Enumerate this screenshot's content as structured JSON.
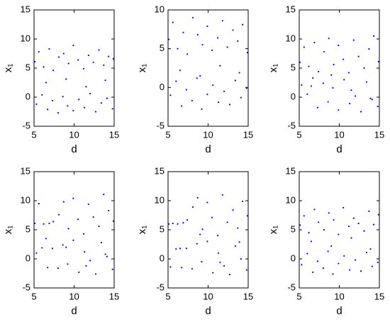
{
  "chart_data": [
    {
      "type": "scatter",
      "xlabel": "d",
      "ylabel": "x₁",
      "color": "#0000ff",
      "xlim": [
        5,
        15
      ],
      "ylim": [
        -5,
        15
      ],
      "xticks": [
        5,
        10,
        15
      ],
      "yticks": [
        -5,
        0,
        5,
        10,
        15
      ],
      "x": [
        5.1,
        5.6,
        6.2,
        6.9,
        7.4,
        8.1,
        8.7,
        9.3,
        9.9,
        10.5,
        11.2,
        11.8,
        12.4,
        13.1,
        13.7,
        14.3,
        14.9,
        5.3,
        6.0,
        6.7,
        7.3,
        8.0,
        8.6,
        9.2,
        9.9,
        10.6,
        11.3,
        12.0,
        12.7,
        13.4,
        14.1,
        14.8,
        6.5,
        9.0,
        11.5,
        13.9
      ],
      "values": [
        6.1,
        7.8,
        5.2,
        8.3,
        4.6,
        6.9,
        7.5,
        5.8,
        8.9,
        6.4,
        4.9,
        7.2,
        6.0,
        8.1,
        5.5,
        7.0,
        6.6,
        -1.2,
        0.4,
        -2.1,
        -0.6,
        -2.7,
        0.1,
        -1.5,
        -2.3,
        -0.4,
        -1.8,
        0.6,
        -2.5,
        -1.0,
        -0.2,
        -2.0,
        2.5,
        3.1,
        1.8,
        2.9
      ]
    },
    {
      "type": "scatter",
      "xlabel": "d",
      "ylabel": "x₁",
      "color": "#0000ff",
      "xlim": [
        5,
        15
      ],
      "ylim": [
        -5,
        10
      ],
      "xticks": [
        5,
        10,
        15
      ],
      "yticks": [
        -5,
        0,
        5,
        10
      ],
      "x": [
        5.1,
        5.6,
        6.2,
        6.9,
        7.4,
        8.1,
        8.7,
        9.3,
        9.9,
        10.5,
        11.2,
        11.8,
        12.4,
        13.1,
        13.7,
        14.3,
        14.9,
        5.3,
        6.0,
        6.7,
        7.3,
        8.0,
        8.6,
        9.2,
        9.9,
        10.6,
        11.3,
        12.0,
        12.7,
        13.4,
        14.1,
        14.8,
        6.5,
        9.0,
        11.5,
        13.9
      ],
      "values": [
        6.2,
        8.4,
        5.0,
        7.1,
        4.3,
        9.0,
        6.8,
        5.5,
        7.9,
        4.8,
        6.4,
        8.6,
        5.2,
        7.4,
        6.0,
        8.1,
        4.5,
        -1.0,
        0.8,
        -2.4,
        -0.3,
        -1.7,
        1.2,
        -2.8,
        -0.9,
        0.3,
        -1.9,
        -0.5,
        -2.2,
        0.9,
        -1.3,
        -0.1,
        2.2,
        1.5,
        2.8,
        1.9
      ]
    },
    {
      "type": "scatter",
      "xlabel": "d",
      "ylabel": "x₁",
      "color": "#0000ff",
      "xlim": [
        5,
        15
      ],
      "ylim": [
        -5,
        15
      ],
      "xticks": [
        5,
        10,
        15
      ],
      "yticks": [
        -5,
        0,
        5,
        10,
        15
      ],
      "x": [
        5.1,
        5.6,
        6.2,
        6.9,
        7.4,
        8.1,
        8.7,
        9.3,
        9.9,
        10.5,
        11.2,
        11.8,
        12.4,
        13.1,
        13.7,
        14.3,
        14.9,
        5.3,
        6.0,
        6.7,
        7.3,
        8.0,
        8.6,
        9.2,
        9.9,
        10.6,
        11.3,
        12.0,
        12.7,
        13.4,
        14.1,
        14.8,
        6.5,
        9.0,
        11.5,
        13.9
      ],
      "values": [
        6.0,
        8.6,
        5.3,
        9.4,
        4.4,
        7.8,
        10.1,
        5.6,
        8.9,
        6.5,
        4.2,
        9.8,
        7.0,
        5.0,
        8.3,
        10.5,
        6.1,
        2.1,
        0.5,
        3.3,
        -1.8,
        2.4,
        -0.8,
        1.6,
        -2.2,
        3.0,
        -1.1,
        0.2,
        -2.5,
        2.6,
        -0.4,
        -1.6,
        1.9,
        3.8,
        1.2,
        -0.2
      ]
    },
    {
      "type": "scatter",
      "xlabel": "d",
      "ylabel": "x₁",
      "color": "#0000ff",
      "xlim": [
        5,
        15
      ],
      "ylim": [
        -5,
        15
      ],
      "xticks": [
        5,
        10,
        15
      ],
      "yticks": [
        -5,
        0,
        5,
        10,
        15
      ],
      "x": [
        5.1,
        5.6,
        6.2,
        6.9,
        7.4,
        8.1,
        8.7,
        9.3,
        9.9,
        10.5,
        11.2,
        11.8,
        12.4,
        13.1,
        13.7,
        14.3,
        14.9,
        5.3,
        6.0,
        6.7,
        7.3,
        8.0,
        8.6,
        9.2,
        9.9,
        10.6,
        11.3,
        12.0,
        12.7,
        13.4,
        14.1,
        14.8,
        6.5,
        9.0,
        11.5,
        13.9
      ],
      "values": [
        6.1,
        9.5,
        6.0,
        6.1,
        6.4,
        7.6,
        9.8,
        5.2,
        10.4,
        6.8,
        4.3,
        9.4,
        7.2,
        5.6,
        11.1,
        8.3,
        6.5,
        1.0,
        1.9,
        -1.5,
        1.8,
        -1.6,
        2.4,
        -0.9,
        3.2,
        -2.3,
        1.2,
        -0.3,
        -2.6,
        2.8,
        0.4,
        -1.8,
        3.5,
        2.0,
        -1.2,
        0.8
      ]
    },
    {
      "type": "scatter",
      "xlabel": "d",
      "ylabel": "x₁",
      "color": "#0000ff",
      "xlim": [
        5,
        15
      ],
      "ylim": [
        -5,
        15
      ],
      "xticks": [
        5,
        10,
        15
      ],
      "yticks": [
        -5,
        0,
        5,
        10,
        15
      ],
      "x": [
        5.1,
        5.6,
        6.2,
        6.9,
        7.4,
        8.1,
        8.7,
        9.3,
        9.9,
        10.5,
        11.2,
        11.8,
        12.4,
        13.1,
        13.7,
        14.3,
        14.9,
        5.3,
        6.0,
        6.7,
        7.3,
        8.0,
        8.6,
        9.2,
        9.9,
        10.6,
        11.3,
        12.0,
        12.7,
        13.4,
        14.1,
        14.8,
        6.5,
        9.0,
        11.5,
        13.9
      ],
      "values": [
        6.0,
        6.1,
        6.0,
        6.2,
        6.7,
        8.9,
        10.5,
        5.1,
        9.7,
        7.1,
        4.0,
        11.0,
        6.3,
        8.4,
        5.3,
        9.9,
        7.4,
        -1.4,
        1.7,
        -1.5,
        1.8,
        -1.7,
        2.6,
        -0.5,
        3.0,
        -2.4,
        1.0,
        -1.2,
        -2.7,
        2.2,
        0.0,
        -1.9,
        1.8,
        4.2,
        -0.6,
        2.9
      ]
    },
    {
      "type": "scatter",
      "xlabel": "d",
      "ylabel": "x₁",
      "color": "#0000ff",
      "xlim": [
        5,
        15
      ],
      "ylim": [
        -5,
        15
      ],
      "xticks": [
        5,
        10,
        15
      ],
      "yticks": [
        -5,
        0,
        5,
        10,
        15
      ],
      "x": [
        5.1,
        5.6,
        6.2,
        6.9,
        7.4,
        8.1,
        8.7,
        9.3,
        9.9,
        10.5,
        11.2,
        11.8,
        12.4,
        13.1,
        13.7,
        14.3,
        14.9,
        5.3,
        6.0,
        6.7,
        7.3,
        8.0,
        8.6,
        9.2,
        9.9,
        10.6,
        11.3,
        12.0,
        12.7,
        13.4,
        14.1,
        14.8,
        6.5,
        9.0,
        11.5,
        13.9
      ],
      "values": [
        5.8,
        7.4,
        4.5,
        8.5,
        6.3,
        5.0,
        7.9,
        6.7,
        4.2,
        8.8,
        5.6,
        7.0,
        6.1,
        4.8,
        8.2,
        5.9,
        7.6,
        -1.0,
        0.9,
        -2.3,
        -0.4,
        -1.6,
        1.3,
        -2.6,
        -0.8,
        0.5,
        -1.9,
        -0.2,
        -2.1,
        1.1,
        -1.3,
        -0.6,
        3.0,
        2.2,
        3.6,
        1.7
      ]
    }
  ]
}
